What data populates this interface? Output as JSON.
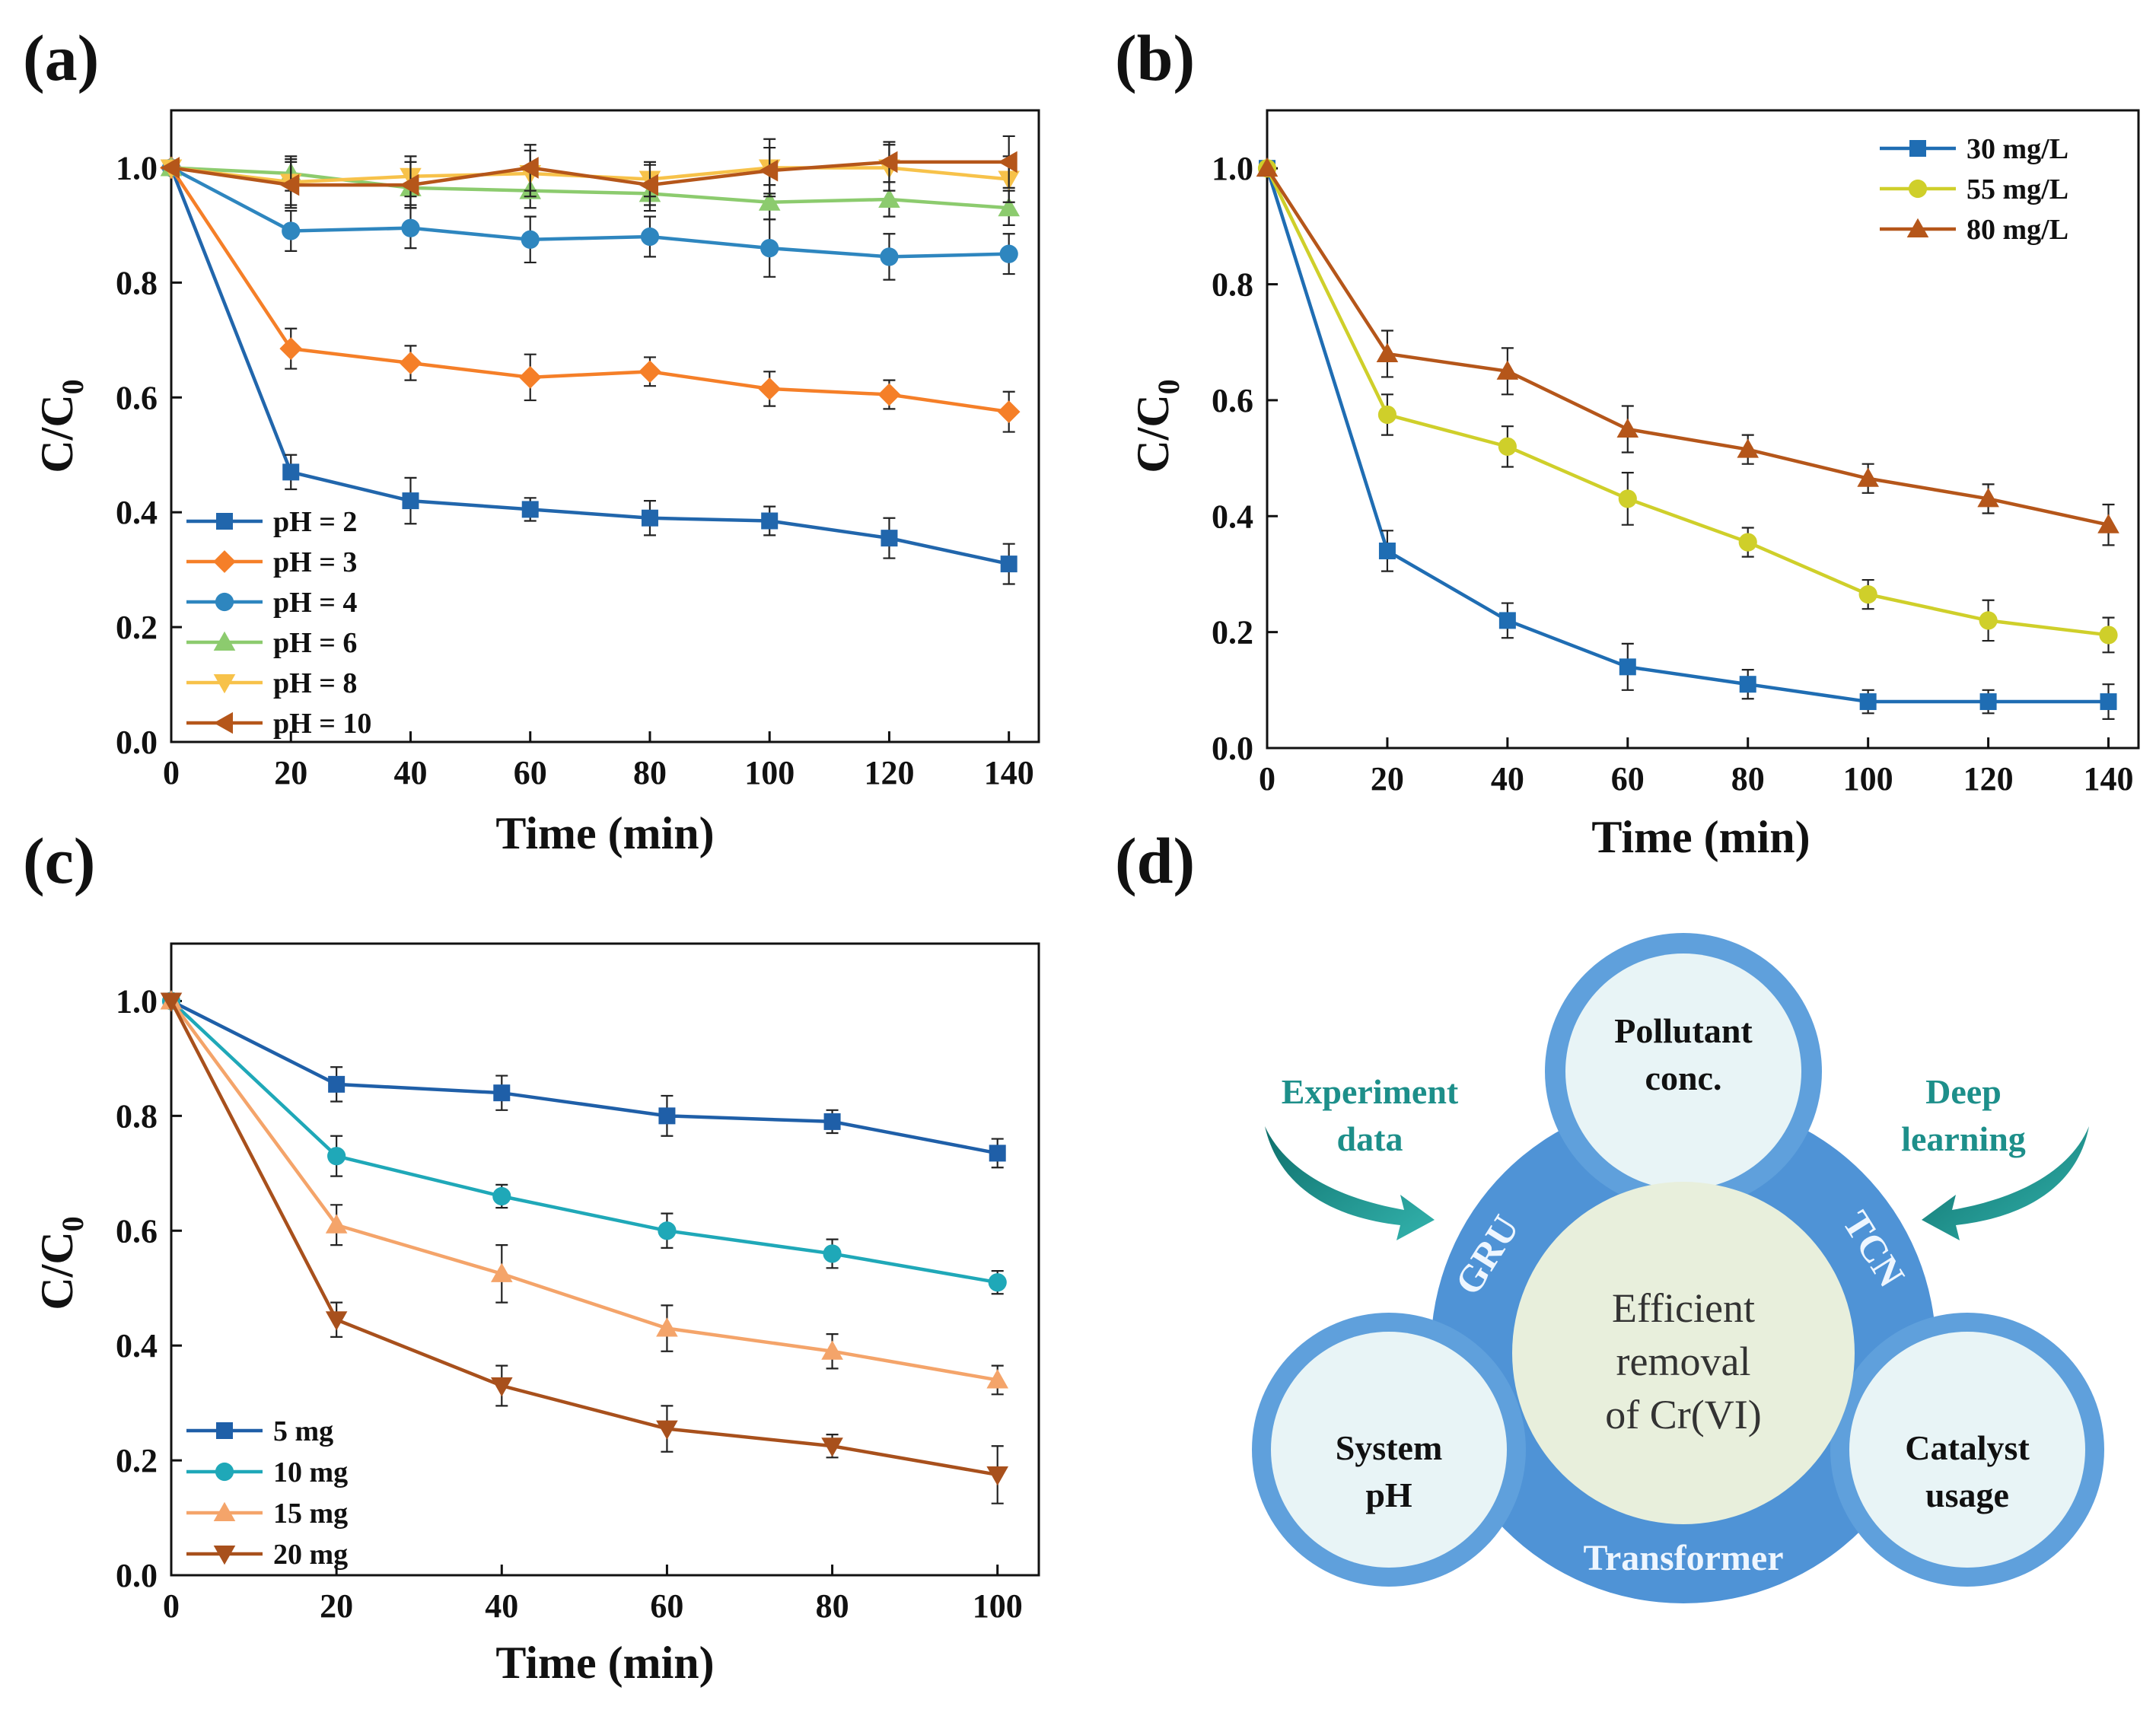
{
  "chart_data": [
    {
      "panel": "(a)",
      "type": "line",
      "xlabel": "Time (min)",
      "ylabel_main": "C/C",
      "ylabel_sub": "0",
      "xlim": [
        0,
        145
      ],
      "ylim": [
        0,
        1.1
      ],
      "xticks": [
        0,
        20,
        40,
        60,
        80,
        100,
        120,
        140
      ],
      "yticks": [
        0.0,
        0.2,
        0.4,
        0.6,
        0.8,
        1.0
      ],
      "legend_position": "bottom-left",
      "x": [
        0,
        20,
        40,
        60,
        80,
        100,
        120,
        140
      ],
      "series": [
        {
          "name": "pH = 2",
          "color": "#2166ac",
          "marker": "square",
          "values": [
            1.0,
            0.47,
            0.42,
            0.405,
            0.39,
            0.385,
            0.355,
            0.31
          ],
          "errors": [
            0,
            0.03,
            0.04,
            0.02,
            0.03,
            0.025,
            0.035,
            0.035
          ]
        },
        {
          "name": "pH = 3",
          "color": "#f57f28",
          "marker": "diamond",
          "values": [
            1.0,
            0.685,
            0.66,
            0.635,
            0.645,
            0.615,
            0.605,
            0.575
          ],
          "errors": [
            0,
            0.035,
            0.03,
            0.04,
            0.025,
            0.03,
            0.025,
            0.035
          ]
        },
        {
          "name": "pH = 4",
          "color": "#2e86bf",
          "marker": "circle",
          "values": [
            1.0,
            0.89,
            0.895,
            0.875,
            0.88,
            0.86,
            0.845,
            0.85
          ],
          "errors": [
            0,
            0.035,
            0.035,
            0.04,
            0.035,
            0.05,
            0.04,
            0.035
          ]
        },
        {
          "name": "pH = 6",
          "color": "#8ccb6e",
          "marker": "triangle-up",
          "values": [
            1.0,
            0.99,
            0.965,
            0.96,
            0.955,
            0.94,
            0.945,
            0.93
          ],
          "errors": [
            0,
            0.03,
            0.03,
            0.03,
            0.03,
            0.03,
            0.03,
            0.03
          ]
        },
        {
          "name": "pH = 8",
          "color": "#f7c24a",
          "marker": "triangle-down",
          "values": [
            1.0,
            0.975,
            0.985,
            0.99,
            0.98,
            1.0,
            1.0,
            0.98
          ],
          "errors": [
            0,
            0.04,
            0.035,
            0.04,
            0.03,
            0.05,
            0.04,
            0.04
          ]
        },
        {
          "name": "pH = 10",
          "color": "#b5561a",
          "marker": "triangle-left",
          "values": [
            1.0,
            0.97,
            0.97,
            1.0,
            0.97,
            0.995,
            1.01,
            1.01
          ],
          "errors": [
            0,
            0.04,
            0.04,
            0.04,
            0.035,
            0.04,
            0.035,
            0.045
          ]
        }
      ]
    },
    {
      "panel": "(b)",
      "type": "line",
      "xlabel": "Time (min)",
      "ylabel_main": "C/C",
      "ylabel_sub": "0",
      "xlim": [
        0,
        145
      ],
      "ylim": [
        0,
        1.1
      ],
      "xticks": [
        0,
        20,
        40,
        60,
        80,
        100,
        120,
        140
      ],
      "yticks": [
        0.0,
        0.2,
        0.4,
        0.6,
        0.8,
        1.0
      ],
      "legend_position": "top-right",
      "x": [
        0,
        20,
        40,
        60,
        80,
        100,
        120,
        140
      ],
      "series": [
        {
          "name": "30 mg/L",
          "color": "#1f6db3",
          "marker": "square",
          "values": [
            1.0,
            0.34,
            0.22,
            0.14,
            0.11,
            0.08,
            0.08,
            0.08
          ],
          "errors": [
            0,
            0.035,
            0.03,
            0.04,
            0.025,
            0.02,
            0.02,
            0.03
          ]
        },
        {
          "name": "55 mg/L",
          "color": "#cfcf2a",
          "marker": "circle",
          "values": [
            1.0,
            0.575,
            0.52,
            0.43,
            0.355,
            0.265,
            0.22,
            0.195
          ],
          "errors": [
            0,
            0.035,
            0.035,
            0.045,
            0.025,
            0.025,
            0.035,
            0.03
          ]
        },
        {
          "name": "80 mg/L",
          "color": "#b5561a",
          "marker": "triangle-up",
          "values": [
            1.0,
            0.68,
            0.65,
            0.55,
            0.515,
            0.465,
            0.43,
            0.385
          ],
          "errors": [
            0,
            0.04,
            0.04,
            0.04,
            0.025,
            0.025,
            0.025,
            0.035
          ]
        }
      ]
    },
    {
      "panel": "(c)",
      "type": "line",
      "xlabel": "Time (min)",
      "ylabel_main": "C/C",
      "ylabel_sub": "0",
      "xlim": [
        0,
        105
      ],
      "ylim": [
        0,
        1.1
      ],
      "xticks": [
        0,
        20,
        40,
        60,
        80,
        100
      ],
      "yticks": [
        0.0,
        0.2,
        0.4,
        0.6,
        0.8,
        1.0
      ],
      "legend_position": "bottom-left",
      "x": [
        0,
        20,
        40,
        60,
        80,
        100
      ],
      "series": [
        {
          "name": "5 mg",
          "color": "#1f5fa8",
          "marker": "square",
          "values": [
            1.0,
            0.855,
            0.84,
            0.8,
            0.79,
            0.735
          ],
          "errors": [
            0,
            0.03,
            0.03,
            0.035,
            0.02,
            0.025
          ]
        },
        {
          "name": "10 mg",
          "color": "#1fa8b8",
          "marker": "circle",
          "values": [
            1.0,
            0.73,
            0.66,
            0.6,
            0.56,
            0.51
          ],
          "errors": [
            0,
            0.035,
            0.02,
            0.03,
            0.025,
            0.02
          ]
        },
        {
          "name": "15 mg",
          "color": "#f4a46a",
          "marker": "triangle-up",
          "values": [
            1.0,
            0.61,
            0.525,
            0.43,
            0.39,
            0.34
          ],
          "errors": [
            0,
            0.035,
            0.05,
            0.04,
            0.03,
            0.025
          ]
        },
        {
          "name": "20 mg",
          "color": "#a8501c",
          "marker": "triangle-down",
          "values": [
            1.0,
            0.445,
            0.33,
            0.255,
            0.225,
            0.175
          ],
          "errors": [
            0,
            0.03,
            0.035,
            0.04,
            0.02,
            0.05
          ]
        }
      ]
    }
  ],
  "diagram": {
    "panel": "(d)",
    "top_circle": [
      "Pollutant",
      "conc."
    ],
    "left_circle": [
      "System",
      "pH"
    ],
    "right_circle": [
      "Catalyst",
      "usage"
    ],
    "center_circle": [
      "Efficient",
      "removal",
      "of Cr(VI)"
    ],
    "label_left": "GRU",
    "label_right": "TCN",
    "label_bottom": "Transformer",
    "arrow_left_text": [
      "Experiment",
      "data"
    ],
    "arrow_right_text": [
      "Deep",
      "learning"
    ],
    "colors": {
      "band": "#4f93d6",
      "ring": "#5fa0dc",
      "small_fill": "#e8f4f6",
      "center_fill": "#e8efdc",
      "arrow": "#1d8f8a",
      "arrow_text": "#1d8f8a"
    }
  }
}
